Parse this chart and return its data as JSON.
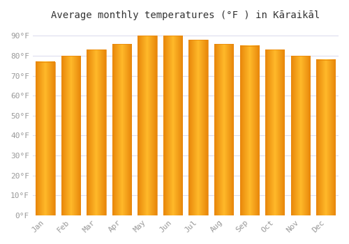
{
  "title": "Average monthly temperatures (°F ) in Kāraikāl",
  "months": [
    "Jan",
    "Feb",
    "Mar",
    "Apr",
    "May",
    "Jun",
    "Jul",
    "Aug",
    "Sep",
    "Oct",
    "Nov",
    "Dec"
  ],
  "values": [
    77,
    80,
    83,
    86,
    90,
    90,
    88,
    86,
    85,
    83,
    80,
    78
  ],
  "bar_color_center": "#FFB92A",
  "bar_color_edge": "#E8860A",
  "background_color": "#FFFFFF",
  "grid_color": "#DDDDEE",
  "yticks": [
    0,
    10,
    20,
    30,
    40,
    50,
    60,
    70,
    80,
    90
  ],
  "ylim": [
    0,
    95
  ],
  "title_fontsize": 10,
  "tick_fontsize": 8,
  "figsize": [
    5.0,
    3.5
  ],
  "dpi": 100
}
